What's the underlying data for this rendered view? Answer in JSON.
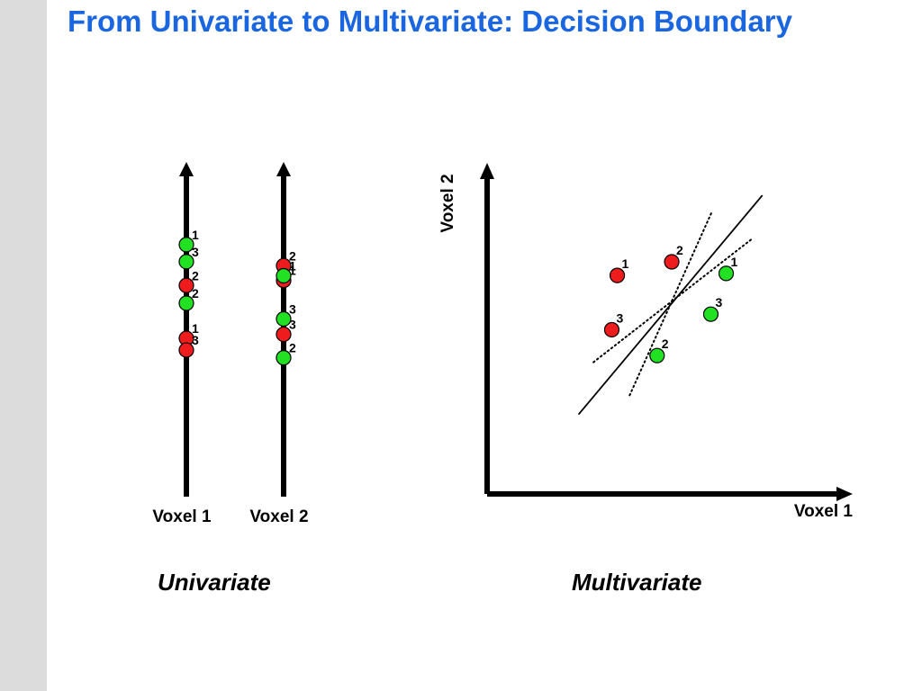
{
  "title": "From Univariate to Multivariate: Decision Boundary",
  "captions": {
    "univariate": "Univariate",
    "multivariate": "Multivariate"
  },
  "colors": {
    "title": "#1a66e0",
    "condition_a": "#ee1c1c",
    "condition_b": "#22e022"
  },
  "univariate": {
    "axes": [
      {
        "label": "Voxel 1",
        "points": [
          {
            "color": "green",
            "label": "1",
            "level": 0.753
          },
          {
            "color": "green",
            "label": "3",
            "level": 0.702
          },
          {
            "color": "red",
            "label": "2",
            "level": 0.631
          },
          {
            "color": "green",
            "label": "2",
            "level": 0.578
          },
          {
            "color": "red",
            "label": "1",
            "level": 0.473
          },
          {
            "color": "red",
            "label": "3",
            "level": 0.438
          }
        ]
      },
      {
        "label": "Voxel 2",
        "points": [
          {
            "color": "red",
            "label": "2",
            "level": 0.69
          },
          {
            "color": "red",
            "label": "1",
            "level": 0.646
          },
          {
            "color": "green",
            "label": "1",
            "level": 0.66
          },
          {
            "color": "green",
            "label": "3",
            "level": 0.531
          },
          {
            "color": "red",
            "label": "3",
            "level": 0.485
          },
          {
            "color": "green",
            "label": "2",
            "level": 0.415
          }
        ]
      }
    ]
  },
  "multivariate": {
    "x_label": "Voxel 1",
    "y_label": "Voxel 2",
    "points": [
      {
        "color": "red",
        "label": "1",
        "x": 0.356,
        "y": 0.66
      },
      {
        "color": "red",
        "label": "2",
        "x": 0.505,
        "y": 0.701
      },
      {
        "color": "red",
        "label": "3",
        "x": 0.341,
        "y": 0.496
      },
      {
        "color": "green",
        "label": "1",
        "x": 0.654,
        "y": 0.666
      },
      {
        "color": "green",
        "label": "2",
        "x": 0.465,
        "y": 0.418
      },
      {
        "color": "green",
        "label": "3",
        "x": 0.612,
        "y": 0.543
      }
    ],
    "boundaries": [
      {
        "style": "solid",
        "from": [
          0.25,
          0.24
        ],
        "to": [
          0.753,
          0.902
        ]
      },
      {
        "style": "dotted",
        "from": [
          0.291,
          0.398
        ],
        "to": [
          0.723,
          0.769
        ]
      },
      {
        "style": "dotted",
        "from": [
          0.39,
          0.298
        ],
        "to": [
          0.614,
          0.85
        ]
      }
    ]
  }
}
